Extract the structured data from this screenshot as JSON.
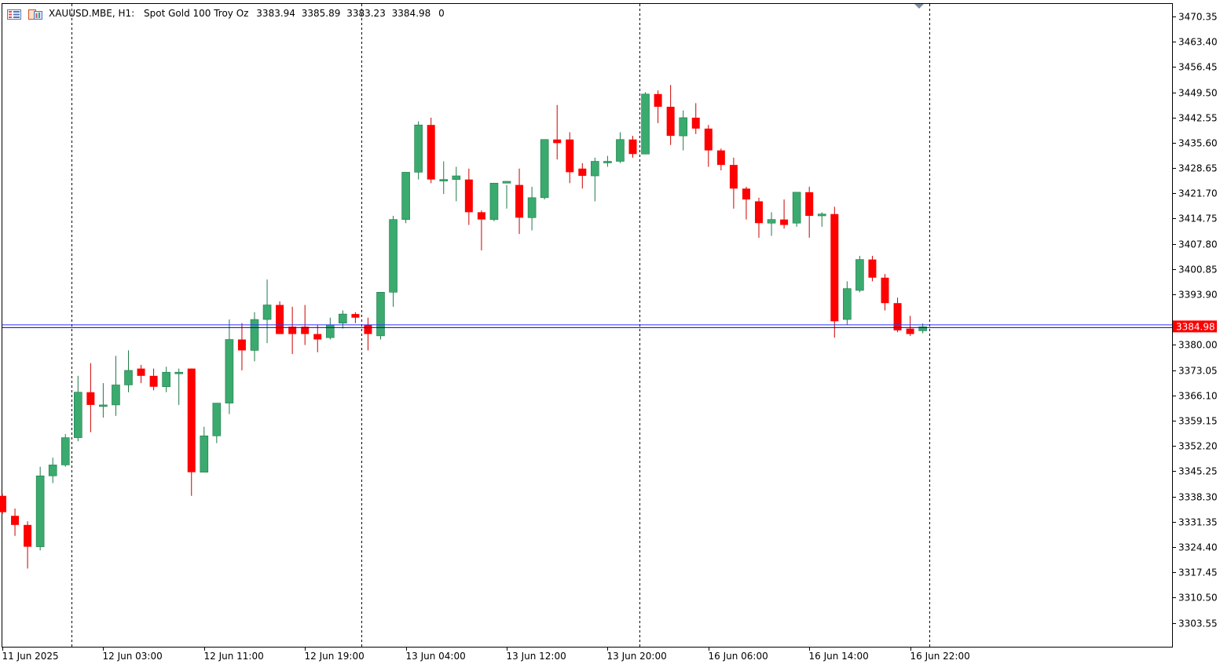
{
  "header": {
    "symbol": "XAUUSD.MBE, H1:",
    "description": "Spot Gold 100 Troy Oz",
    "open": "3383.94",
    "high": "3385.89",
    "low": "3383.23",
    "close": "3384.98",
    "volume": "0"
  },
  "colors": {
    "bull": "#3aaa6e",
    "bear": "#ff0000",
    "grid": "#000000",
    "bid_line": "#0000cc",
    "ask_line": "#3030ff",
    "price_label_bg": "#ff0000"
  },
  "icons": [
    "chart-list-icon",
    "chart-window-icon",
    "scroll-marker-icon"
  ],
  "chart_data": {
    "type": "candlestick",
    "timeframe": "H1",
    "current_price_label": "3384.98",
    "ylim": [
      3297.0,
      3474.0
    ],
    "y_ticks": [
      "3470.35",
      "3463.40",
      "3456.45",
      "3449.50",
      "3442.55",
      "3435.60",
      "3428.65",
      "3421.70",
      "3414.75",
      "3407.80",
      "3400.85",
      "3393.90",
      "3380.00",
      "3373.05",
      "3366.10",
      "3359.15",
      "3352.20",
      "3345.25",
      "3338.30",
      "3331.35",
      "3324.40",
      "3317.45",
      "3310.50",
      "3303.55"
    ],
    "x_labels": [
      "11 Jun 2025",
      "12 Jun 03:00",
      "12 Jun 11:00",
      "12 Jun 19:00",
      "13 Jun 04:00",
      "13 Jun 12:00",
      "13 Jun 20:00",
      "16 Jun 06:00",
      "16 Jun 14:00",
      "16 Jun 22:00"
    ],
    "x_label_index": [
      0,
      8,
      16,
      24,
      32,
      40,
      48,
      56,
      64,
      72
    ],
    "day_separators_index": [
      5.5,
      28.5,
      50.5,
      73.5
    ],
    "ohlc": [
      [
        3338.5,
        3339.0,
        3333.5,
        3334.0
      ],
      [
        3333.0,
        3335.0,
        3327.5,
        3330.5
      ],
      [
        3330.5,
        3331.5,
        3318.5,
        3324.5
      ],
      [
        3324.5,
        3346.5,
        3323.5,
        3344.0
      ],
      [
        3344.0,
        3349.0,
        3342.0,
        3347.0
      ],
      [
        3347.0,
        3355.5,
        3346.5,
        3354.5
      ],
      [
        3354.5,
        3371.5,
        3353.5,
        3367.0
      ],
      [
        3367.0,
        3375.0,
        3356.0,
        3363.5
      ],
      [
        3363.5,
        3369.5,
        3360.0,
        3363.5
      ],
      [
        3363.5,
        3377.0,
        3360.5,
        3369.0
      ],
      [
        3369.0,
        3378.5,
        3367.0,
        3373.0
      ],
      [
        3373.5,
        3374.5,
        3369.5,
        3371.5
      ],
      [
        3371.5,
        3373.5,
        3367.5,
        3368.5
      ],
      [
        3368.5,
        3374.0,
        3367.0,
        3372.5
      ],
      [
        3372.5,
        3373.5,
        3363.5,
        3372.5
      ],
      [
        3373.5,
        3373.5,
        3338.5,
        3345.0
      ],
      [
        3345.0,
        3357.5,
        3345.0,
        3355.0
      ],
      [
        3355.0,
        3364.0,
        3353.0,
        3364.0
      ],
      [
        3364.0,
        3387.0,
        3361.0,
        3381.5
      ],
      [
        3381.5,
        3386.0,
        3373.0,
        3378.5
      ],
      [
        3378.5,
        3389.0,
        3375.5,
        3387.0
      ],
      [
        3387.0,
        3398.0,
        3380.5,
        3391.0
      ],
      [
        3391.0,
        3392.0,
        3383.0,
        3383.0
      ],
      [
        3385.0,
        3390.5,
        3377.5,
        3383.0
      ],
      [
        3385.0,
        3391.0,
        3380.0,
        3383.0
      ],
      [
        3383.0,
        3385.5,
        3378.0,
        3381.5
      ],
      [
        3382.0,
        3387.5,
        3381.5,
        3385.5
      ],
      [
        3386.0,
        3389.5,
        3384.5,
        3388.5
      ],
      [
        3388.5,
        3389.0,
        3386.0,
        3387.5
      ],
      [
        3385.5,
        3387.5,
        3378.5,
        3383.0
      ],
      [
        3382.5,
        3394.5,
        3381.5,
        3394.5
      ],
      [
        3394.5,
        3415.5,
        3390.5,
        3414.5
      ],
      [
        3414.5,
        3427.5,
        3413.5,
        3427.5
      ],
      [
        3427.5,
        3441.5,
        3425.5,
        3440.5
      ],
      [
        3440.5,
        3442.5,
        3424.5,
        3425.5
      ],
      [
        3425.5,
        3430.5,
        3421.5,
        3425.5
      ],
      [
        3425.5,
        3429.0,
        3419.5,
        3426.5
      ],
      [
        3425.5,
        3428.5,
        3413.0,
        3416.5
      ],
      [
        3416.5,
        3417.0,
        3406.0,
        3414.5
      ],
      [
        3414.5,
        3424.5,
        3414.0,
        3424.5
      ],
      [
        3424.5,
        3424.0,
        3417.5,
        3425.0
      ],
      [
        3424.0,
        3428.5,
        3410.5,
        3415.0
      ],
      [
        3415.0,
        3423.5,
        3411.5,
        3420.5
      ],
      [
        3420.5,
        3436.5,
        3420.0,
        3436.5
      ],
      [
        3436.5,
        3446.0,
        3431.0,
        3435.5
      ],
      [
        3436.5,
        3438.5,
        3424.5,
        3427.5
      ],
      [
        3428.5,
        3430.0,
        3423.0,
        3426.5
      ],
      [
        3426.5,
        3431.5,
        3419.5,
        3430.5
      ],
      [
        3430.5,
        3432.0,
        3429.0,
        3430.5
      ],
      [
        3430.5,
        3438.5,
        3430.0,
        3436.5
      ],
      [
        3436.5,
        3437.5,
        3431.5,
        3432.5
      ],
      [
        3432.5,
        3449.5,
        3432.5,
        3449.0
      ],
      [
        3449.0,
        3450.0,
        3441.0,
        3445.5
      ],
      [
        3445.5,
        3451.5,
        3435.0,
        3437.5
      ],
      [
        3437.5,
        3444.5,
        3433.5,
        3442.5
      ],
      [
        3442.5,
        3446.5,
        3438.0,
        3439.5
      ],
      [
        3439.5,
        3440.5,
        3429.0,
        3433.5
      ],
      [
        3433.5,
        3434.0,
        3428.0,
        3429.5
      ],
      [
        3429.5,
        3431.5,
        3417.5,
        3423.0
      ],
      [
        3423.0,
        3423.5,
        3414.5,
        3420.0
      ],
      [
        3419.5,
        3420.5,
        3409.5,
        3413.5
      ],
      [
        3413.5,
        3416.5,
        3410.0,
        3414.5
      ],
      [
        3414.5,
        3420.0,
        3412.0,
        3413.0
      ],
      [
        3413.5,
        3422.0,
        3412.5,
        3422.0
      ],
      [
        3422.0,
        3423.5,
        3409.5,
        3415.5
      ],
      [
        3415.5,
        3416.5,
        3412.5,
        3416.0
      ],
      [
        3416.0,
        3418.0,
        3382.0,
        3386.5
      ],
      [
        3387.0,
        3397.5,
        3385.5,
        3395.5
      ],
      [
        3395.0,
        3404.5,
        3394.5,
        3403.5
      ],
      [
        3403.5,
        3404.5,
        3397.5,
        3398.5
      ],
      [
        3398.5,
        3399.5,
        3389.5,
        3391.5
      ],
      [
        3391.5,
        3393.0,
        3383.5,
        3384.0
      ],
      [
        3384.5,
        3388.0,
        3382.5,
        3383.0
      ],
      [
        3383.9,
        3385.9,
        3383.2,
        3384.98
      ]
    ]
  }
}
